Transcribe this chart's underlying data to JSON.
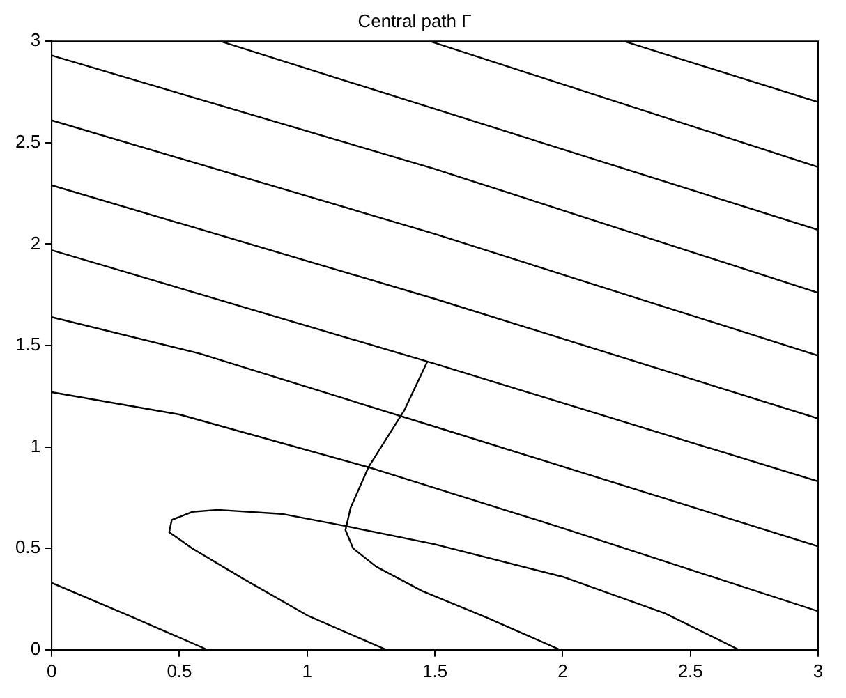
{
  "chart_data": {
    "type": "line",
    "title": "Central path Γ",
    "marker": "none",
    "line_style": "solid",
    "xlim": [
      0,
      3
    ],
    "ylim": [
      0,
      3
    ],
    "xticks": [
      0,
      0.5,
      1,
      1.5,
      2,
      2.5,
      3
    ],
    "yticks": [
      0,
      0.5,
      1,
      1.5,
      2,
      2.5,
      3
    ],
    "series": [
      {
        "color": "#000000",
        "x": [
          2.24,
          3
        ],
        "values": [
          3,
          2.7
        ]
      },
      {
        "color": "#000000",
        "x": [
          1.48,
          3
        ],
        "values": [
          3,
          2.38
        ]
      },
      {
        "color": "#000000",
        "x": [
          0.66,
          3
        ],
        "values": [
          3,
          2.07
        ]
      },
      {
        "color": "#000000",
        "x": [
          0,
          1.5,
          3
        ],
        "values": [
          2.93,
          2.37,
          1.76
        ]
      },
      {
        "color": "#000000",
        "x": [
          0,
          1.5,
          3
        ],
        "values": [
          2.61,
          2.05,
          1.45
        ]
      },
      {
        "color": "#000000",
        "x": [
          0,
          1.5,
          3
        ],
        "values": [
          2.29,
          1.73,
          1.14
        ]
      },
      {
        "color": "#000000",
        "x": [
          0,
          1.5,
          3
        ],
        "values": [
          1.97,
          1.41,
          0.83
        ]
      },
      {
        "color": "#000000",
        "x": [
          0,
          0.58,
          1.5,
          3
        ],
        "values": [
          1.64,
          1.46,
          1.1,
          0.51
        ]
      },
      {
        "color": "#000000",
        "x": [
          0,
          0.5,
          1.24,
          2,
          3
        ],
        "values": [
          1.27,
          1.16,
          0.9,
          0.6,
          0.19
        ]
      },
      {
        "color": "#000000",
        "x": [
          0,
          0.3,
          0.61
        ],
        "values": [
          0.33,
          0.17,
          0
        ]
      },
      {
        "color": "#000000",
        "x": [
          1.31,
          1.0,
          0.75,
          0.55,
          0.46,
          0.47,
          0.55,
          0.65,
          0.9,
          1.15,
          1.5,
          2.0,
          2.4,
          2.69
        ],
        "values": [
          0,
          0.17,
          0.35,
          0.5,
          0.58,
          0.64,
          0.68,
          0.69,
          0.67,
          0.61,
          0.52,
          0.36,
          0.18,
          0
        ]
      },
      {
        "color": "#000000",
        "x": [
          1.47,
          1.38,
          1.24,
          1.17,
          1.15,
          1.18,
          1.27,
          1.45,
          1.7,
          1.99
        ],
        "values": [
          1.42,
          1.18,
          0.9,
          0.7,
          0.59,
          0.5,
          0.41,
          0.29,
          0.16,
          0
        ]
      }
    ]
  }
}
